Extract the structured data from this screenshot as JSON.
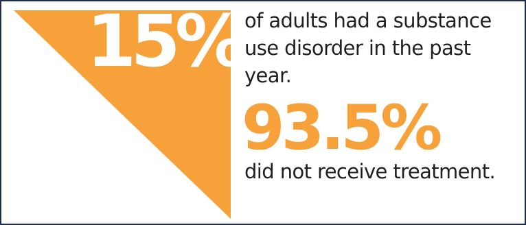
{
  "stat_1": {
    "value": "15%",
    "description": "of adults had a substance use disorder in the past year."
  },
  "stat_2": {
    "value": "93.5%",
    "description": "did not receive treatment."
  },
  "colors": {
    "accent": "#f7a13b",
    "text": "#231f20",
    "border": "#1f2d4a",
    "background": "#ffffff"
  }
}
